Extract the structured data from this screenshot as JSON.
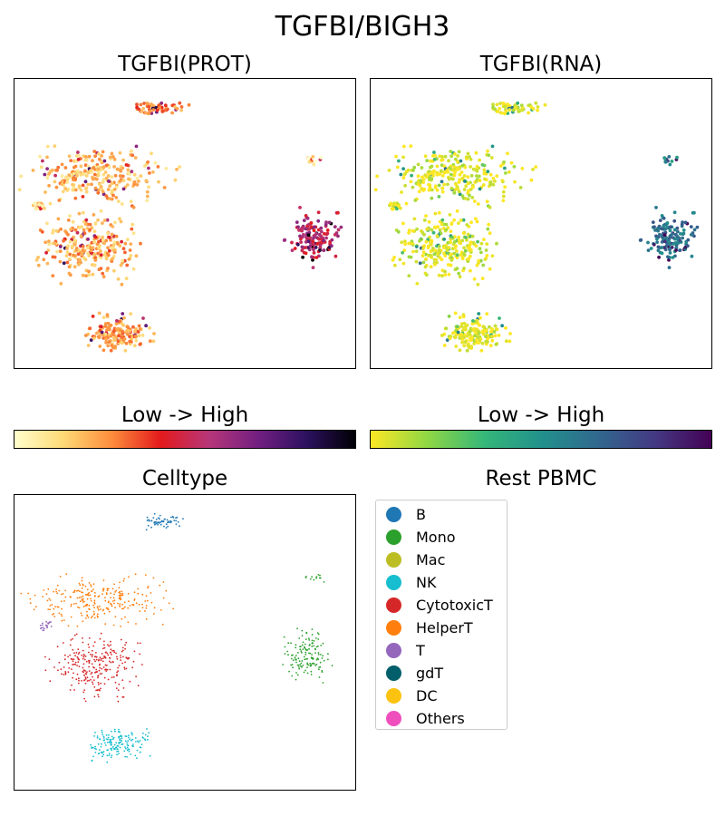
{
  "title": "TGFBI/BIGH3",
  "panels": {
    "prot": {
      "title": "TGFBI(PROT)"
    },
    "rna": {
      "title": "TGFBI(RNA)"
    },
    "celltype": {
      "title": "Celltype"
    },
    "legend_title": "Rest PBMC"
  },
  "colorbars": {
    "prot": {
      "label": "Low  ->  High",
      "colors": [
        "#ffffcc",
        "#fed976",
        "#fd8d3c",
        "#e31a1c",
        "#b63679",
        "#721f81",
        "#2c115f",
        "#000004"
      ]
    },
    "rna": {
      "label": "Low  ->  High",
      "colors": [
        "#fde725",
        "#8fd744",
        "#35b779",
        "#21918c",
        "#31688e",
        "#443983",
        "#440154"
      ]
    }
  },
  "legend": [
    {
      "label": "B",
      "color": "#1f77b4"
    },
    {
      "label": "Mono",
      "color": "#2ca02c"
    },
    {
      "label": "Mac",
      "color": "#bcbd22"
    },
    {
      "label": "NK",
      "color": "#17becf"
    },
    {
      "label": "CytotoxicT",
      "color": "#d62728"
    },
    {
      "label": "HelperT",
      "color": "#ff7f0e"
    },
    {
      "label": "T",
      "color": "#9467bd"
    },
    {
      "label": "gdT",
      "color": "#005f6a"
    },
    {
      "label": "DC",
      "color": "#fbc30f"
    },
    {
      "label": "Others",
      "color": "#ee4fbd"
    }
  ],
  "chart_data": [
    {
      "type": "scatter",
      "title": "TGFBI(PROT)",
      "xlabel": "",
      "ylabel": "",
      "axes": "hidden ticks",
      "note_scale": "expression Low -> High",
      "clusters": [
        {
          "celltype": "B",
          "center": [
            0.42,
            0.1
          ],
          "spread": [
            0.1,
            0.03
          ],
          "n": 60,
          "expr": 0.3
        },
        {
          "celltype": "HelperT",
          "center": [
            0.24,
            0.33
          ],
          "spread": [
            0.26,
            0.13
          ],
          "n": 260,
          "expr": 0.2
        },
        {
          "celltype": "CytotoxicT",
          "center": [
            0.22,
            0.58
          ],
          "spread": [
            0.18,
            0.15
          ],
          "n": 260,
          "expr": 0.22
        },
        {
          "celltype": "T",
          "center": [
            0.07,
            0.44
          ],
          "spread": [
            0.03,
            0.03
          ],
          "n": 20,
          "expr": 0.15
        },
        {
          "celltype": "NK",
          "center": [
            0.3,
            0.88
          ],
          "spread": [
            0.13,
            0.08
          ],
          "n": 160,
          "expr": 0.25
        },
        {
          "celltype": "Mono",
          "center": [
            0.88,
            0.55
          ],
          "spread": [
            0.1,
            0.12
          ],
          "n": 140,
          "expr": 0.55
        },
        {
          "celltype": "Mono",
          "center": [
            0.88,
            0.28
          ],
          "spread": [
            0.04,
            0.02
          ],
          "n": 12,
          "expr": 0.1
        }
      ]
    },
    {
      "type": "scatter",
      "title": "TGFBI(RNA)",
      "xlabel": "",
      "ylabel": "",
      "axes": "hidden ticks",
      "note_scale": "expression Low -> High",
      "clusters": [
        {
          "celltype": "B",
          "center": [
            0.42,
            0.1
          ],
          "spread": [
            0.1,
            0.03
          ],
          "n": 60,
          "expr": 0.02
        },
        {
          "celltype": "HelperT",
          "center": [
            0.24,
            0.33
          ],
          "spread": [
            0.26,
            0.13
          ],
          "n": 260,
          "expr": 0.03
        },
        {
          "celltype": "CytotoxicT",
          "center": [
            0.22,
            0.58
          ],
          "spread": [
            0.18,
            0.15
          ],
          "n": 260,
          "expr": 0.03
        },
        {
          "celltype": "T",
          "center": [
            0.07,
            0.44
          ],
          "spread": [
            0.03,
            0.03
          ],
          "n": 20,
          "expr": 0.02
        },
        {
          "celltype": "NK",
          "center": [
            0.3,
            0.88
          ],
          "spread": [
            0.13,
            0.08
          ],
          "n": 160,
          "expr": 0.02
        },
        {
          "celltype": "Mono",
          "center": [
            0.88,
            0.55
          ],
          "spread": [
            0.1,
            0.12
          ],
          "n": 140,
          "expr": 0.62
        },
        {
          "celltype": "Mono",
          "center": [
            0.88,
            0.28
          ],
          "spread": [
            0.04,
            0.02
          ],
          "n": 12,
          "expr": 0.55
        }
      ]
    },
    {
      "type": "scatter",
      "title": "Celltype",
      "xlabel": "",
      "ylabel": "",
      "axes": "hidden ticks",
      "clusters": [
        {
          "celltype": "B",
          "center": [
            0.44,
            0.09
          ],
          "spread": [
            0.09,
            0.03
          ],
          "n": 60
        },
        {
          "celltype": "HelperT",
          "center": [
            0.24,
            0.36
          ],
          "spread": [
            0.26,
            0.12
          ],
          "n": 260
        },
        {
          "celltype": "CytotoxicT",
          "center": [
            0.24,
            0.58
          ],
          "spread": [
            0.17,
            0.14
          ],
          "n": 260
        },
        {
          "celltype": "T",
          "center": [
            0.09,
            0.44
          ],
          "spread": [
            0.03,
            0.03
          ],
          "n": 20
        },
        {
          "celltype": "NK",
          "center": [
            0.3,
            0.85
          ],
          "spread": [
            0.13,
            0.08
          ],
          "n": 160
        },
        {
          "celltype": "Mono",
          "center": [
            0.86,
            0.55
          ],
          "spread": [
            0.1,
            0.12
          ],
          "n": 140
        },
        {
          "celltype": "Mono",
          "center": [
            0.88,
            0.28
          ],
          "spread": [
            0.05,
            0.02
          ],
          "n": 12
        }
      ]
    }
  ]
}
